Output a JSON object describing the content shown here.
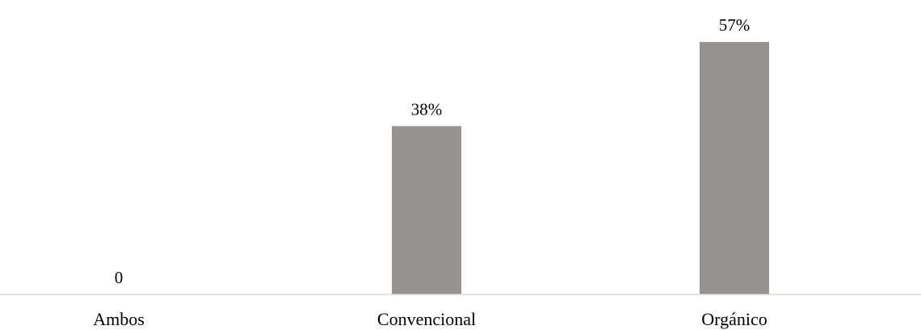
{
  "chart_data": {
    "type": "bar",
    "categories": [
      "Ambos",
      "Convencional",
      "Orgánico"
    ],
    "values": [
      0,
      38,
      57
    ],
    "data_labels": [
      "0",
      "38%",
      "57%"
    ],
    "unit": "%",
    "title": "",
    "xlabel": "",
    "ylabel": "",
    "ylim": [
      0,
      57
    ],
    "grid": false,
    "legend": "none",
    "bar_color": "#969391",
    "axis_color": "#d9d9d9"
  }
}
